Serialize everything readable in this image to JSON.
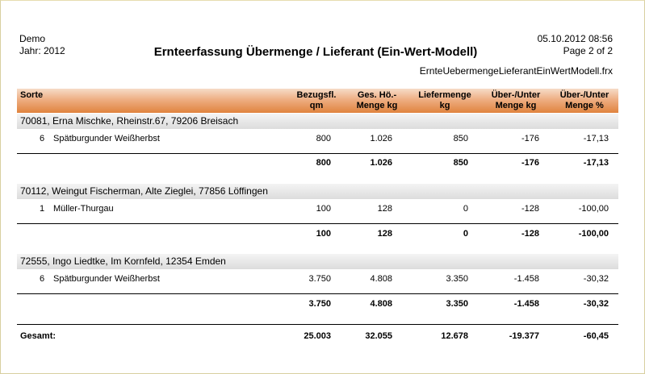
{
  "header": {
    "company": "Demo",
    "year": "Jahr: 2012",
    "title": "Ernteerfassung Übermenge / Lieferant (Ein-Wert-Modell)",
    "datetime": "05.10.2012  08:56",
    "page": "Page 2 of 2",
    "file": "ErnteUebermengeLieferantEinWertModell.frx"
  },
  "columns": {
    "sorte": "Sorte",
    "bezug_1": "Bezugsfl.",
    "bezug_2": "qm",
    "ges_1": "Ges. Hö.-",
    "ges_2": "Menge kg",
    "lief_1": "Liefermenge",
    "lief_2": "kg",
    "ukg_1": "Über-/Unter",
    "ukg_2": "Menge kg",
    "upct_1": "Über-/Unter",
    "upct_2": "Menge %"
  },
  "groups": [
    {
      "title": "70081, Erna Mischke, Rheinstr.67, 79206 Breisach",
      "row": {
        "nr": "6",
        "sorte": "Spätburgunder Weißherbst",
        "bez": "800",
        "ges": "1.026",
        "lief": "850",
        "ukg": "-176",
        "upct": "-17,13"
      },
      "sum": {
        "bez": "800",
        "ges": "1.026",
        "lief": "850",
        "ukg": "-176",
        "upct": "-17,13"
      }
    },
    {
      "title": "70112, Weingut Fischerman, Alte Zieglei, 77856 Löffingen",
      "row": {
        "nr": "1",
        "sorte": "Müller-Thurgau",
        "bez": "100",
        "ges": "128",
        "lief": "0",
        "ukg": "-128",
        "upct": "-100,00"
      },
      "sum": {
        "bez": "100",
        "ges": "128",
        "lief": "0",
        "ukg": "-128",
        "upct": "-100,00"
      }
    },
    {
      "title": "72555, Ingo Liedtke, Im Kornfeld, 12354 Emden",
      "row": {
        "nr": "6",
        "sorte": "Spätburgunder Weißherbst",
        "bez": "3.750",
        "ges": "4.808",
        "lief": "3.350",
        "ukg": "-1.458",
        "upct": "-30,32"
      },
      "sum": {
        "bez": "3.750",
        "ges": "4.808",
        "lief": "3.350",
        "ukg": "-1.458",
        "upct": "-30,32"
      }
    }
  ],
  "total": {
    "label": "Gesamt:",
    "bez": "25.003",
    "ges": "32.055",
    "lief": "12.678",
    "ukg": "-19.377",
    "upct": "-60,45"
  }
}
